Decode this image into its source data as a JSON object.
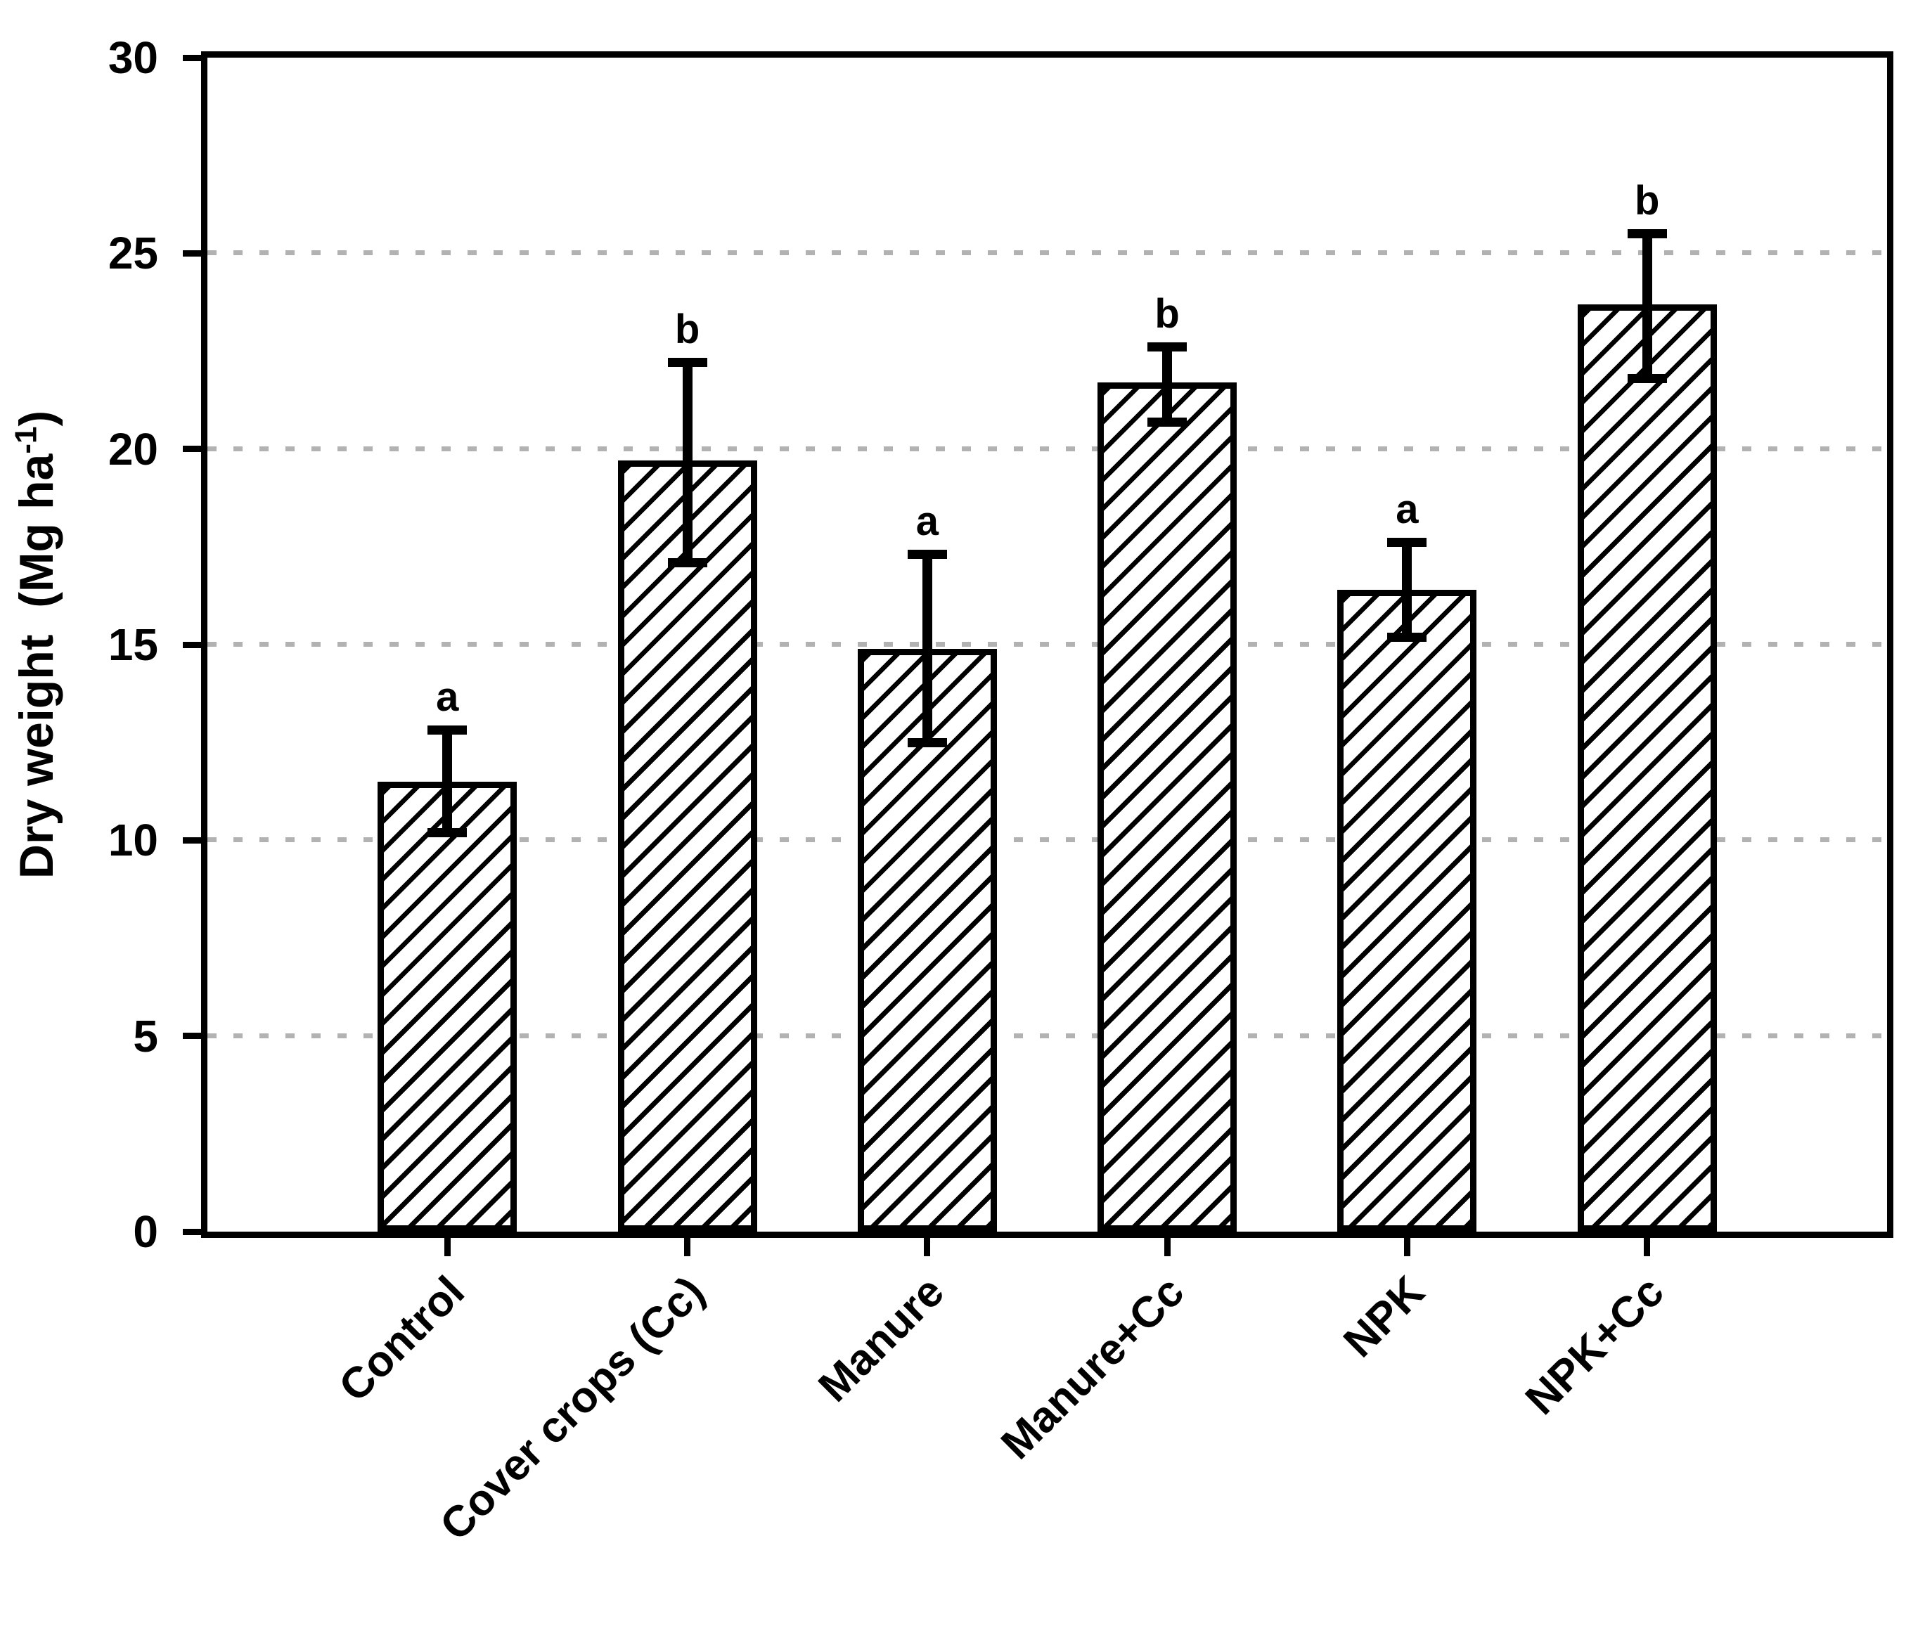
{
  "chart_data": {
    "type": "bar",
    "title": "",
    "xlabel": "",
    "ylabel": "Dry weight  (Mg ha⁻¹)",
    "ylabel_parts": {
      "prefix": "Dry weight  (Mg ha",
      "sup": "-1",
      "suffix": ")"
    },
    "categories": [
      "Control",
      "Cover crops (Cc)",
      "Manure",
      "Manure+Cc",
      "NPK",
      "NPK+Cc"
    ],
    "values": [
      11.5,
      19.7,
      14.9,
      21.7,
      16.4,
      23.7
    ],
    "error_bars_plus": [
      1.3,
      2.5,
      2.4,
      0.9,
      1.2,
      1.8
    ],
    "error_bars_minus": [
      1.3,
      2.6,
      2.4,
      1.0,
      1.2,
      1.9
    ],
    "sig_letters": [
      "a",
      "b",
      "a",
      "b",
      "a",
      "b"
    ],
    "ylim": [
      0,
      30
    ],
    "yticks": [
      0,
      5,
      10,
      15,
      20,
      25,
      30
    ],
    "gridline_values": [
      5,
      10,
      15,
      20,
      25
    ],
    "gridline_style": "dotted",
    "gridline_color": "#b2b2b2",
    "bar_fill": "white",
    "bar_hatch": "diagonal-forward-slash",
    "bar_edge_color": "#000000",
    "error_bar_color": "#000000",
    "axes_box": true,
    "legend": "none"
  }
}
